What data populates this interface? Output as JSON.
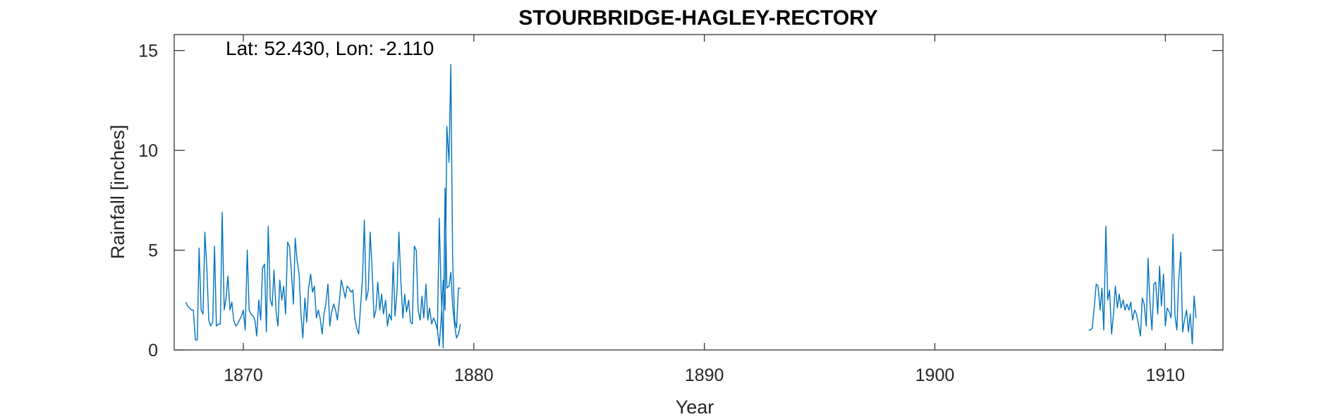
{
  "chart_data": {
    "type": "line",
    "title": "STOURBRIDGE-HAGLEY-RECTORY",
    "annotation": "Lat: 52.430, Lon: -2.110",
    "xlabel": "Year",
    "ylabel": "Rainfall [inches]",
    "xlim": [
      1867.0,
      1912.5
    ],
    "ylim": [
      0,
      15.8
    ],
    "xticks": [
      1870,
      1880,
      1890,
      1900,
      1910
    ],
    "yticks": [
      0,
      5,
      10,
      15
    ],
    "line_color": "#0072BD",
    "grid": false,
    "series": [
      {
        "x": [
          1867.5,
          1867.58,
          1867.67,
          1867.75,
          1867.83,
          1867.92,
          1868.0,
          1868.08,
          1868.17,
          1868.25,
          1868.33,
          1868.42,
          1868.5,
          1868.58,
          1868.67,
          1868.75,
          1868.83,
          1868.92,
          1869.0,
          1869.08,
          1869.17,
          1869.25,
          1869.33,
          1869.42,
          1869.5,
          1869.58,
          1869.67,
          1869.75,
          1869.83,
          1869.92,
          1870.0,
          1870.08,
          1870.17,
          1870.25,
          1870.33,
          1870.42,
          1870.5,
          1870.58,
          1870.67,
          1870.75,
          1870.83,
          1870.92,
          1871.0,
          1871.08,
          1871.17,
          1871.25,
          1871.33,
          1871.42,
          1871.5,
          1871.58,
          1871.67,
          1871.75,
          1871.83,
          1871.92,
          1872.0,
          1872.08,
          1872.17,
          1872.25,
          1872.33,
          1872.42,
          1872.5,
          1872.58,
          1872.67,
          1872.75,
          1872.83,
          1872.92,
          1873.0,
          1873.08,
          1873.17,
          1873.25,
          1873.33,
          1873.42,
          1873.5,
          1873.58,
          1873.67,
          1873.75,
          1873.83,
          1873.92,
          1874.0,
          1874.08,
          1874.17,
          1874.25,
          1874.33,
          1874.42,
          1874.5,
          1874.58,
          1874.67,
          1874.75,
          1874.83,
          1874.92,
          1875.0,
          1875.08,
          1875.17,
          1875.25,
          1875.33,
          1875.42,
          1875.5,
          1875.58,
          1875.67,
          1875.75,
          1875.83,
          1875.92,
          1876.0,
          1876.08,
          1876.17,
          1876.25,
          1876.33,
          1876.42,
          1876.5,
          1876.58,
          1876.67,
          1876.75,
          1876.83,
          1876.92,
          1877.0,
          1877.08,
          1877.17,
          1877.25,
          1877.33,
          1877.42,
          1877.5,
          1877.58,
          1877.67,
          1877.75,
          1877.83,
          1877.92,
          1878.0,
          1878.08,
          1878.17,
          1878.25,
          1878.33,
          1878.42,
          1878.5,
          1878.58,
          1878.67,
          1878.75,
          1878.83,
          1878.92,
          1879.0,
          1879.08,
          1879.17,
          1879.25,
          1879.33,
          1879.42
        ],
        "y": [
          2.4,
          2.2,
          2.1,
          2.0,
          2.0,
          0.5,
          0.5,
          5.1,
          2.0,
          1.8,
          5.9,
          4.0,
          1.5,
          1.2,
          1.4,
          5.2,
          1.2,
          1.3,
          1.3,
          6.9,
          2.0,
          2.6,
          3.7,
          2.0,
          2.4,
          1.5,
          1.2,
          1.3,
          1.5,
          1.7,
          2.0,
          1.0,
          5.0,
          2.0,
          1.8,
          1.7,
          1.5,
          0.7,
          2.5,
          1.5,
          4.1,
          4.3,
          0.9,
          6.2,
          2.5,
          2.2,
          4.0,
          1.9,
          1.2,
          3.5,
          2.5,
          3.2,
          1.8,
          5.4,
          5.2,
          4.0,
          2.3,
          5.6,
          4.5,
          3.8,
          1.8,
          0.6,
          2.6,
          1.4,
          3.1,
          3.8,
          2.9,
          3.2,
          1.6,
          2.0,
          1.6,
          0.8,
          1.8,
          2.3,
          3.3,
          1.2,
          1.9,
          2.3,
          2.0,
          1.5,
          2.5,
          3.5,
          3.1,
          2.6,
          3.2,
          3.1,
          2.9,
          3.0,
          1.6,
          1.1,
          0.8,
          2.1,
          3.6,
          6.5,
          2.5,
          3.0,
          5.9,
          4.2,
          1.6,
          2.0,
          3.4,
          2.0,
          2.8,
          1.8,
          2.5,
          1.2,
          1.8,
          1.5,
          4.4,
          1.7,
          3.0,
          5.9,
          3.5,
          1.6,
          2.8,
          1.9,
          2.5,
          1.4,
          1.3,
          5.2,
          5.0,
          2.0,
          1.5,
          2.7,
          1.6,
          3.3,
          1.5,
          2.1,
          1.3,
          1.6,
          1.4,
          1.0,
          6.6,
          3.0,
          0.1,
          8.1,
          3.1,
          3.2,
          3.9,
          2.2,
          1.2,
          0.6,
          0.8,
          1.3
        ]
      },
      {
        "x": [
          1878.4,
          1878.5,
          1878.58,
          1878.67,
          1878.75,
          1878.83,
          1878.92,
          1879.0,
          1879.08,
          1879.17,
          1879.25,
          1879.33,
          1879.42
        ],
        "y": [
          1.2,
          0.2,
          1.5,
          3.5,
          2.0,
          11.2,
          9.4,
          14.3,
          4.5,
          1.5,
          1.1,
          3.1,
          3.1
        ]
      },
      {
        "x": [
          1906.67,
          1906.75,
          1906.83,
          1906.92,
          1907.0,
          1907.08,
          1907.17,
          1907.25,
          1907.33,
          1907.42,
          1907.5,
          1907.58,
          1907.67,
          1907.75,
          1907.83,
          1907.92,
          1908.0,
          1908.08,
          1908.17,
          1908.25,
          1908.33,
          1908.42,
          1908.5,
          1908.58,
          1908.67,
          1908.75,
          1908.83,
          1908.92,
          1909.0,
          1909.08,
          1909.17,
          1909.25,
          1909.33,
          1909.42,
          1909.5,
          1909.58,
          1909.67,
          1909.75,
          1909.83,
          1909.92,
          1910.0,
          1910.08,
          1910.17,
          1910.25,
          1910.33,
          1910.42,
          1910.5,
          1910.58,
          1910.67,
          1910.75,
          1910.83,
          1910.92,
          1911.0,
          1911.08,
          1911.17,
          1911.25,
          1911.33
        ],
        "y": [
          1.0,
          1.0,
          1.1,
          2.2,
          3.3,
          3.2,
          2.0,
          3.1,
          1.0,
          6.2,
          2.5,
          3.0,
          0.8,
          1.8,
          3.2,
          2.1,
          2.8,
          2.1,
          2.5,
          2.0,
          2.3,
          2.0,
          2.4,
          1.5,
          2.0,
          1.8,
          1.3,
          0.7,
          2.6,
          2.3,
          1.2,
          4.6,
          2.4,
          1.0,
          3.3,
          3.4,
          1.8,
          4.2,
          2.2,
          3.8,
          1.2,
          2.1,
          1.9,
          1.6,
          5.8,
          1.7,
          1.0,
          3.5,
          4.9,
          0.9,
          1.5,
          2.0,
          0.9,
          1.8,
          0.3,
          2.7,
          1.6
        ]
      }
    ]
  }
}
